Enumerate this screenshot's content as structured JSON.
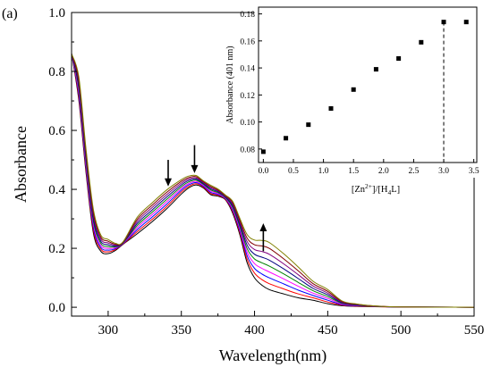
{
  "panel_label": "(a)",
  "chart_data": [
    {
      "type": "line",
      "xlabel": "Wavelength(nm)",
      "ylabel": "Absorbance",
      "xlim": [
        275,
        550
      ],
      "ylim": [
        -0.03,
        1.0
      ],
      "x_ticks": [
        300,
        350,
        400,
        450,
        500,
        550
      ],
      "y_ticks": [
        0.0,
        0.2,
        0.4,
        0.6,
        0.8,
        1.0
      ],
      "x_tick_labels": [
        "300",
        "350",
        "400",
        "450",
        "500",
        "550"
      ],
      "y_tick_labels": [
        "0.0",
        "0.2",
        "0.4",
        "0.6",
        "0.8",
        "1.0"
      ],
      "annotations": [
        {
          "type": "arrow",
          "direction": "down",
          "x": 341,
          "y_from": 0.5,
          "y_to": 0.41
        },
        {
          "type": "arrow",
          "direction": "down",
          "x": 359,
          "y_from": 0.55,
          "y_to": 0.455
        },
        {
          "type": "arrow",
          "direction": "up",
          "x": 406,
          "y_from": 0.19,
          "y_to": 0.285
        }
      ],
      "x": [
        275,
        280,
        285,
        290,
        295,
        300,
        305,
        310,
        320,
        330,
        340,
        350,
        355,
        360,
        365,
        370,
        375,
        380,
        385,
        390,
        395,
        400,
        405,
        410,
        420,
        430,
        440,
        450,
        460,
        470,
        480,
        500,
        550
      ],
      "series": [
        {
          "color": "#000000",
          "values": [
            0.86,
            0.7,
            0.45,
            0.25,
            0.19,
            0.182,
            0.193,
            0.213,
            0.25,
            0.29,
            0.334,
            0.384,
            0.405,
            0.415,
            0.405,
            0.382,
            0.377,
            0.365,
            0.32,
            0.245,
            0.15,
            0.1,
            0.075,
            0.06,
            0.045,
            0.032,
            0.024,
            0.012,
            0.005,
            0.003,
            0.002,
            0.001,
            0.0
          ]
        },
        {
          "color": "#ff0000",
          "values": [
            0.86,
            0.71,
            0.46,
            0.26,
            0.197,
            0.188,
            0.196,
            0.214,
            0.257,
            0.298,
            0.342,
            0.391,
            0.41,
            0.419,
            0.408,
            0.386,
            0.38,
            0.367,
            0.325,
            0.252,
            0.162,
            0.116,
            0.094,
            0.08,
            0.062,
            0.045,
            0.032,
            0.018,
            0.007,
            0.004,
            0.002,
            0.001,
            0.0
          ]
        },
        {
          "color": "#0000ff",
          "values": [
            0.86,
            0.72,
            0.47,
            0.27,
            0.203,
            0.194,
            0.199,
            0.215,
            0.264,
            0.306,
            0.35,
            0.397,
            0.415,
            0.423,
            0.411,
            0.39,
            0.383,
            0.369,
            0.33,
            0.259,
            0.174,
            0.132,
            0.113,
            0.1,
            0.079,
            0.058,
            0.04,
            0.024,
            0.009,
            0.005,
            0.003,
            0.001,
            0.0
          ]
        },
        {
          "color": "#ff00ff",
          "values": [
            0.86,
            0.73,
            0.48,
            0.28,
            0.21,
            0.2,
            0.202,
            0.216,
            0.271,
            0.314,
            0.358,
            0.403,
            0.42,
            0.427,
            0.414,
            0.394,
            0.386,
            0.371,
            0.335,
            0.266,
            0.186,
            0.148,
            0.132,
            0.12,
            0.096,
            0.071,
            0.048,
            0.03,
            0.011,
            0.006,
            0.003,
            0.001,
            0.0
          ]
        },
        {
          "color": "#008000",
          "values": [
            0.86,
            0.74,
            0.49,
            0.29,
            0.217,
            0.206,
            0.205,
            0.217,
            0.278,
            0.322,
            0.366,
            0.409,
            0.425,
            0.431,
            0.417,
            0.398,
            0.389,
            0.373,
            0.34,
            0.273,
            0.198,
            0.164,
            0.151,
            0.14,
            0.113,
            0.084,
            0.056,
            0.036,
            0.013,
            0.007,
            0.003,
            0.001,
            0.0
          ]
        },
        {
          "color": "#000080",
          "values": [
            0.86,
            0.75,
            0.5,
            0.3,
            0.224,
            0.212,
            0.208,
            0.218,
            0.285,
            0.33,
            0.374,
            0.415,
            0.43,
            0.435,
            0.42,
            0.402,
            0.392,
            0.375,
            0.345,
            0.28,
            0.21,
            0.18,
            0.17,
            0.16,
            0.13,
            0.097,
            0.064,
            0.042,
            0.015,
            0.008,
            0.004,
            0.001,
            0.0
          ]
        },
        {
          "color": "#800080",
          "values": [
            0.86,
            0.76,
            0.51,
            0.31,
            0.231,
            0.218,
            0.211,
            0.219,
            0.292,
            0.338,
            0.382,
            0.421,
            0.435,
            0.439,
            0.423,
            0.406,
            0.395,
            0.377,
            0.35,
            0.287,
            0.222,
            0.196,
            0.189,
            0.18,
            0.147,
            0.11,
            0.072,
            0.048,
            0.017,
            0.009,
            0.004,
            0.001,
            0.0
          ]
        },
        {
          "color": "#800000",
          "values": [
            0.86,
            0.77,
            0.52,
            0.32,
            0.238,
            0.224,
            0.214,
            0.22,
            0.299,
            0.346,
            0.39,
            0.427,
            0.44,
            0.443,
            0.426,
            0.41,
            0.398,
            0.379,
            0.355,
            0.294,
            0.234,
            0.212,
            0.208,
            0.2,
            0.164,
            0.123,
            0.08,
            0.054,
            0.019,
            0.01,
            0.005,
            0.001,
            0.0
          ]
        },
        {
          "color": "#808000",
          "values": [
            0.86,
            0.78,
            0.53,
            0.33,
            0.245,
            0.23,
            0.217,
            0.221,
            0.306,
            0.354,
            0.398,
            0.433,
            0.445,
            0.447,
            0.429,
            0.414,
            0.401,
            0.381,
            0.36,
            0.301,
            0.246,
            0.228,
            0.227,
            0.22,
            0.181,
            0.136,
            0.088,
            0.06,
            0.021,
            0.011,
            0.005,
            0.001,
            0.0
          ]
        }
      ]
    },
    {
      "type": "scatter",
      "xlabel": "[Zn2+]/[H4L]",
      "xlabel_parts": {
        "open": "[Zn",
        "sup": "2+",
        "mid": "]/[H",
        "sub": "4",
        "close": "L]"
      },
      "ylabel": "Absorbance (401 nm)",
      "xlim": [
        -0.08,
        3.55
      ],
      "ylim": [
        0.07,
        0.185
      ],
      "x_ticks": [
        0.0,
        0.5,
        1.0,
        1.5,
        2.0,
        2.5,
        3.0,
        3.5
      ],
      "y_ticks": [
        0.08,
        0.1,
        0.12,
        0.14,
        0.16,
        0.18
      ],
      "x_tick_labels": [
        "0.0",
        "0.5",
        "1.0",
        "1.5",
        "2.0",
        "2.5",
        "3.0",
        "3.5"
      ],
      "y_tick_labels": [
        "0.08",
        "0.10",
        "0.12",
        "0.14",
        "0.16",
        "0.18"
      ],
      "reference_line": {
        "x": 3.0,
        "style": "dashed"
      },
      "x": [
        0.0,
        0.375,
        0.75,
        1.125,
        1.5,
        1.875,
        2.25,
        2.625,
        3.0,
        3.375
      ],
      "values": [
        0.078,
        0.088,
        0.098,
        0.11,
        0.124,
        0.139,
        0.147,
        0.159,
        0.174,
        0.174
      ]
    }
  ]
}
